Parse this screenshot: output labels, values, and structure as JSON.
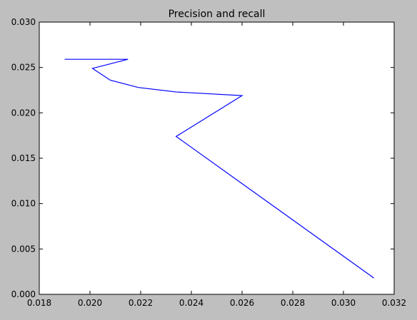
{
  "figure": {
    "background_color": "#bfbfbf"
  },
  "chart_data": {
    "type": "line",
    "title": "Precision and recall",
    "xlabel": "",
    "ylabel": "",
    "xlim": [
      0.018,
      0.032
    ],
    "ylim": [
      0.0,
      0.03
    ],
    "x_ticks": [
      0.018,
      0.02,
      0.022,
      0.024,
      0.026,
      0.028,
      0.03,
      0.032
    ],
    "x_tick_labels": [
      "0.018",
      "0.020",
      "0.022",
      "0.024",
      "0.026",
      "0.028",
      "0.030",
      "0.032"
    ],
    "y_ticks": [
      0.0,
      0.005,
      0.01,
      0.015,
      0.02,
      0.025,
      0.03
    ],
    "y_tick_labels": [
      "0.000",
      "0.005",
      "0.010",
      "0.015",
      "0.020",
      "0.025",
      "0.030"
    ],
    "grid": false,
    "legend": "none",
    "plot_background": "#ffffff",
    "series": [
      {
        "color": "#0000ff",
        "x": [
          0.019,
          0.0215,
          0.0201,
          0.0208,
          0.0219,
          0.0234,
          0.026,
          0.0234,
          0.0312
        ],
        "y": [
          0.0259,
          0.0259,
          0.0249,
          0.0236,
          0.0228,
          0.0223,
          0.0219,
          0.0174,
          0.0018
        ]
      }
    ]
  }
}
